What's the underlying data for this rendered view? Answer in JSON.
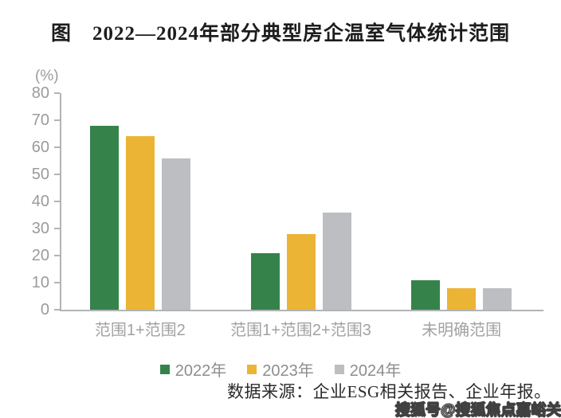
{
  "title": "图　2022—2024年部分典型房企温室气体统计范围",
  "chart_data": {
    "type": "bar",
    "title": "图 2022—2024年部分典型房企温室气体统计范围",
    "unit_label": "(%)",
    "xlabel": "",
    "ylabel": "(%)",
    "ylim": [
      0,
      80
    ],
    "ytick_step": 10,
    "yticks": [
      0,
      10,
      20,
      30,
      40,
      50,
      60,
      70,
      80
    ],
    "grid": false,
    "legend_position": "bottom",
    "categories": [
      "范围1+范围2",
      "范围1+范围2+范围3",
      "未明确范围"
    ],
    "series": [
      {
        "name": "2022年",
        "color": "#35834a",
        "values": [
          68,
          21,
          11
        ]
      },
      {
        "name": "2023年",
        "color": "#ebb434",
        "values": [
          64,
          28,
          8
        ]
      },
      {
        "name": "2024年",
        "color": "#bdbec2",
        "values": [
          56,
          36,
          8
        ]
      }
    ]
  },
  "source_note": "数据来源：企业ESG相关报告、企业年报。",
  "watermark": "搜狐号@搜狐焦点嘉峪关站",
  "colors": {
    "series_2022": "#35834a",
    "series_2023": "#ebb434",
    "series_2024": "#bdbec2",
    "axis": "#b1b4b6",
    "axis_text": "#9b9b9b"
  }
}
